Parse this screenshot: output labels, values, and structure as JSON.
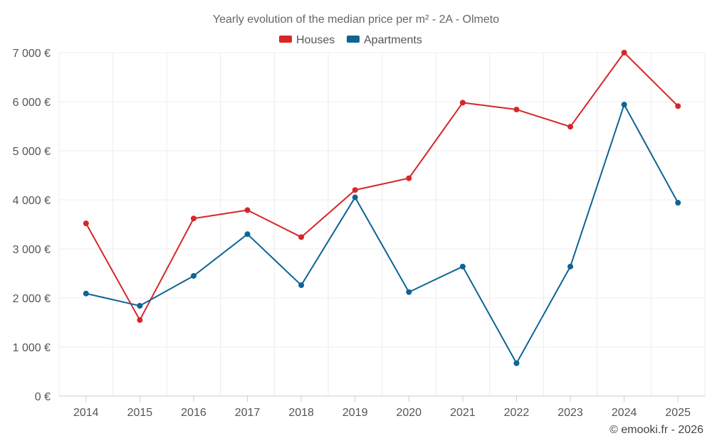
{
  "chart_data": {
    "type": "line",
    "title": "Yearly evolution of the median price per m² - 2A - Olmeto",
    "xlabel": "",
    "ylabel": "",
    "categories": [
      "2014",
      "2015",
      "2016",
      "2017",
      "2018",
      "2019",
      "2020",
      "2021",
      "2022",
      "2023",
      "2024",
      "2025"
    ],
    "ylim": [
      0,
      7000
    ],
    "yticks": [
      0,
      1000,
      2000,
      3000,
      4000,
      5000,
      6000,
      7000
    ],
    "ytick_labels": [
      "0 €",
      "1 000 €",
      "2 000 €",
      "3 000 €",
      "4 000 €",
      "5 000 €",
      "6 000 €",
      "7 000 €"
    ],
    "grid": true,
    "legend_position": "top-center",
    "series": [
      {
        "name": "Houses",
        "color": "#d62728",
        "values": [
          3520,
          1550,
          3620,
          3790,
          3240,
          4200,
          4440,
          5980,
          5840,
          5490,
          7000,
          5910
        ]
      },
      {
        "name": "Apartments",
        "color": "#0e6494",
        "values": [
          2090,
          1840,
          2450,
          3300,
          2260,
          4050,
          2120,
          2640,
          670,
          2640,
          5940,
          3940
        ]
      }
    ],
    "credit": "© emooki.fr - 2026"
  }
}
